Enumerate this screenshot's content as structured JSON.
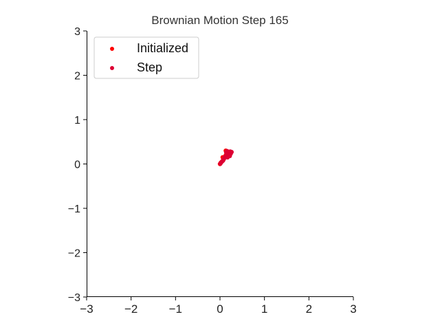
{
  "chart_data": {
    "type": "scatter",
    "title": "Brownian Motion Step 165",
    "xlabel": "",
    "ylabel": "",
    "xlim": [
      -3,
      3
    ],
    "ylim": [
      -3,
      3
    ],
    "xticks": [
      "−3",
      "−2",
      "−1",
      "0",
      "1",
      "2",
      "3"
    ],
    "yticks": [
      "−3",
      "−2",
      "−1",
      "0",
      "1",
      "2",
      "3"
    ],
    "grid": false,
    "legend_position": "top-left",
    "series": [
      {
        "name": "Initialized",
        "color": "#ff0000",
        "points": [
          {
            "x": 0.0,
            "y": 0.0
          },
          {
            "x": 0.02,
            "y": 0.03
          },
          {
            "x": 0.05,
            "y": 0.06
          },
          {
            "x": 0.08,
            "y": 0.1
          },
          {
            "x": 0.1,
            "y": 0.14
          },
          {
            "x": 0.12,
            "y": 0.18
          },
          {
            "x": 0.14,
            "y": 0.21
          },
          {
            "x": 0.16,
            "y": 0.24
          },
          {
            "x": 0.18,
            "y": 0.27
          },
          {
            "x": 0.13,
            "y": 0.3
          },
          {
            "x": 0.06,
            "y": 0.15
          },
          {
            "x": 0.2,
            "y": 0.2
          }
        ]
      },
      {
        "name": "Step",
        "color": "#dd0033",
        "points": [
          {
            "x": 0.01,
            "y": 0.01
          },
          {
            "x": 0.04,
            "y": 0.05
          },
          {
            "x": 0.07,
            "y": 0.08
          },
          {
            "x": 0.09,
            "y": 0.12
          },
          {
            "x": 0.11,
            "y": 0.16
          },
          {
            "x": 0.15,
            "y": 0.19
          },
          {
            "x": 0.17,
            "y": 0.15
          },
          {
            "x": 0.19,
            "y": 0.22
          },
          {
            "x": 0.21,
            "y": 0.25
          },
          {
            "x": 0.23,
            "y": 0.28
          },
          {
            "x": 0.26,
            "y": 0.27
          },
          {
            "x": 0.16,
            "y": 0.29
          },
          {
            "x": 0.22,
            "y": 0.18
          },
          {
            "x": 0.14,
            "y": 0.26
          },
          {
            "x": 0.24,
            "y": 0.23
          }
        ]
      }
    ]
  }
}
